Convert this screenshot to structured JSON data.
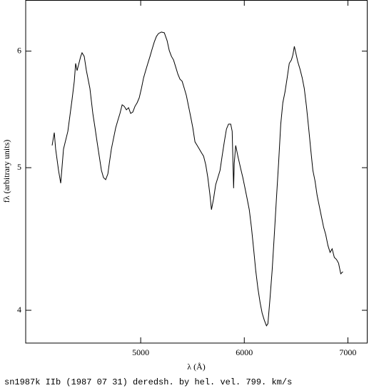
{
  "chart_data": {
    "type": "line",
    "xlabel": "λ (Å)",
    "ylabel": "fλ (arbitrary units)",
    "caption": "sn1987k IIb (1987 07 31) deredsh. by hel. vel.   799. km/s",
    "xlim": [
      3890,
      7190
    ],
    "ylim": [
      3.8,
      6.5
    ],
    "xticks": [
      5000,
      6000,
      7000
    ],
    "yticks": [
      4,
      5,
      6
    ],
    "log_y": true,
    "grid": false,
    "x": [
      4145,
      4166,
      4179,
      4207,
      4228,
      4255,
      4297,
      4338,
      4359,
      4372,
      4386,
      4421,
      4434,
      4455,
      4476,
      4510,
      4538,
      4559,
      4579,
      4600,
      4621,
      4641,
      4662,
      4683,
      4697,
      4717,
      4738,
      4759,
      4779,
      4800,
      4821,
      4841,
      4862,
      4883,
      4903,
      4924,
      4945,
      4966,
      4986,
      5007,
      5028,
      5048,
      5069,
      5090,
      5110,
      5131,
      5152,
      5172,
      5200,
      5228,
      5255,
      5276,
      5297,
      5317,
      5338,
      5359,
      5379,
      5400,
      5421,
      5441,
      5462,
      5483,
      5503,
      5524,
      5545,
      5566,
      5586,
      5607,
      5628,
      5648,
      5669,
      5683,
      5703,
      5724,
      5745,
      5766,
      5786,
      5807,
      5828,
      5848,
      5869,
      5883,
      5897,
      5903,
      5917,
      5938,
      5966,
      5986,
      6007,
      6028,
      6048,
      6069,
      6090,
      6110,
      6131,
      6152,
      6172,
      6193,
      6214,
      6228,
      6248,
      6269,
      6290,
      6310,
      6331,
      6352,
      6372,
      6393,
      6414,
      6434,
      6455,
      6469,
      6483,
      6497,
      6517,
      6538,
      6559,
      6579,
      6600,
      6621,
      6641,
      6662,
      6683,
      6703,
      6724,
      6745,
      6766,
      6786,
      6807,
      6828,
      6848,
      6869,
      6890,
      6910,
      6931,
      6952
    ],
    "series": [
      {
        "color": "#000000",
        "values": [
          5.177,
          5.282,
          5.148,
          4.979,
          4.88,
          5.148,
          5.293,
          5.566,
          5.724,
          5.886,
          5.82,
          5.951,
          5.985,
          5.951,
          5.82,
          5.66,
          5.443,
          5.323,
          5.206,
          5.091,
          4.979,
          4.923,
          4.907,
          4.951,
          5.034,
          5.148,
          5.235,
          5.323,
          5.383,
          5.443,
          5.517,
          5.504,
          5.474,
          5.492,
          5.443,
          5.455,
          5.504,
          5.535,
          5.578,
          5.66,
          5.755,
          5.82,
          5.886,
          5.951,
          6.018,
          6.086,
          6.14,
          6.168,
          6.182,
          6.175,
          6.099,
          6.005,
          5.951,
          5.918,
          5.853,
          5.788,
          5.743,
          5.724,
          5.66,
          5.597,
          5.504,
          5.413,
          5.323,
          5.206,
          5.177,
          5.148,
          5.119,
          5.091,
          5.023,
          4.923,
          4.788,
          4.682,
          4.761,
          4.869,
          4.923,
          4.979,
          5.091,
          5.206,
          5.312,
          5.353,
          5.353,
          5.293,
          4.842,
          5.034,
          5.177,
          5.091,
          4.99,
          4.923,
          4.842,
          4.761,
          4.682,
          4.554,
          4.404,
          4.259,
          4.142,
          4.051,
          3.983,
          3.939,
          3.904,
          3.917,
          4.073,
          4.259,
          4.503,
          4.761,
          5.034,
          5.353,
          5.535,
          5.629,
          5.755,
          5.886,
          5.918,
          5.965,
          6.045,
          5.985,
          5.899,
          5.833,
          5.755,
          5.66,
          5.504,
          5.323,
          5.148,
          4.979,
          4.896,
          4.788,
          4.708,
          4.63,
          4.554,
          4.503,
          4.428,
          4.379,
          4.404,
          4.345,
          4.331,
          4.306,
          4.235,
          4.249
        ]
      }
    ]
  }
}
